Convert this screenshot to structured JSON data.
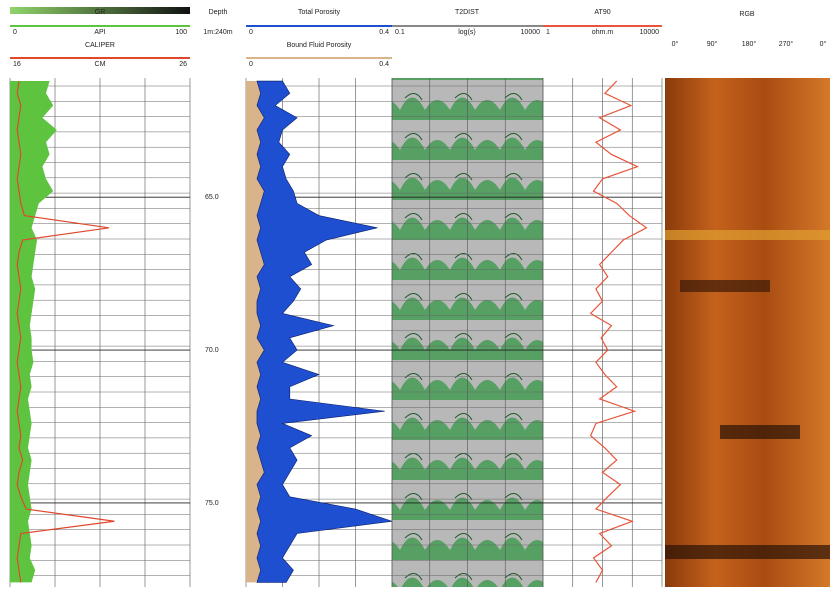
{
  "chart_data": {
    "type": "well-log",
    "depth_label": "Depth",
    "depth_scale": "1m:240m",
    "ylim": [
      61.1,
      77.75
    ],
    "yticks": [
      {
        "value": 65,
        "label": "65.0"
      },
      {
        "value": 70,
        "label": "70.0"
      },
      {
        "value": 75,
        "label": "75.0"
      }
    ],
    "depth": [
      61.2,
      61.6,
      62.0,
      62.4,
      62.8,
      63.2,
      63.6,
      64.0,
      64.4,
      64.8,
      65.2,
      65.6,
      66.0,
      66.4,
      66.8,
      67.2,
      67.6,
      68.0,
      68.4,
      68.8,
      69.2,
      69.6,
      70.0,
      70.4,
      70.8,
      71.2,
      71.6,
      72.0,
      72.4,
      72.8,
      73.2,
      73.6,
      74.0,
      74.4,
      74.8,
      75.2,
      75.6,
      76.0,
      76.4,
      76.8,
      77.2,
      77.6
    ],
    "tracks": [
      {
        "name": "GR",
        "unit": "API",
        "scale": [
          "0",
          "100"
        ],
        "xlim": [
          0,
          100
        ],
        "color": "#5ec440",
        "fill": true,
        "values": [
          22,
          20,
          24,
          18,
          26,
          20,
          22,
          18,
          20,
          24,
          16,
          14,
          12,
          15,
          14,
          13,
          12,
          14,
          13,
          12,
          11,
          12,
          12,
          13,
          11,
          12,
          10,
          11,
          12,
          11,
          10,
          12,
          11,
          10,
          11,
          12,
          10,
          11,
          12,
          11,
          14,
          12
        ]
      },
      {
        "name": "CALIPER",
        "unit": "CM",
        "scale": [
          "16",
          "26"
        ],
        "xlim": [
          16,
          26
        ],
        "color": "#e0472c",
        "values": [
          16.5,
          16.4,
          16.6,
          16.5,
          16.4,
          16.5,
          16.6,
          16.5,
          16.4,
          16.5,
          16.6,
          16.8,
          21.5,
          16.7,
          16.5,
          16.4,
          16.5,
          16.6,
          16.5,
          16.4,
          16.5,
          16.6,
          16.5,
          16.4,
          16.5,
          16.6,
          16.5,
          16.4,
          16.5,
          16.6,
          16.5,
          16.7,
          16.5,
          16.4,
          16.6,
          16.9,
          21.8,
          16.6,
          16.5,
          16.4,
          16.5,
          16.6
        ]
      },
      {
        "name": "Total Porosity",
        "scale": [
          "0",
          "0.4"
        ],
        "xlim": [
          0,
          0.4
        ],
        "color": "#1f4fd1",
        "values": [
          0.1,
          0.12,
          0.08,
          0.14,
          0.1,
          0.09,
          0.12,
          0.1,
          0.11,
          0.13,
          0.14,
          0.2,
          0.36,
          0.22,
          0.16,
          0.18,
          0.12,
          0.15,
          0.13,
          0.1,
          0.24,
          0.12,
          0.14,
          0.1,
          0.2,
          0.12,
          0.12,
          0.38,
          0.1,
          0.18,
          0.12,
          0.14,
          0.12,
          0.1,
          0.12,
          0.3,
          0.4,
          0.14,
          0.12,
          0.1,
          0.13,
          0.11
        ]
      },
      {
        "name": "Bound Fluid Porosity",
        "scale": [
          "0",
          "0.4"
        ],
        "xlim": [
          0,
          0.4
        ],
        "color": "#d9b48a",
        "values": [
          0.03,
          0.04,
          0.03,
          0.05,
          0.03,
          0.04,
          0.03,
          0.04,
          0.03,
          0.05,
          0.04,
          0.03,
          0.04,
          0.03,
          0.04,
          0.05,
          0.03,
          0.04,
          0.03,
          0.03,
          0.04,
          0.03,
          0.05,
          0.03,
          0.04,
          0.03,
          0.04,
          0.03,
          0.03,
          0.04,
          0.03,
          0.04,
          0.05,
          0.03,
          0.04,
          0.03,
          0.04,
          0.03,
          0.04,
          0.03,
          0.04,
          0.03
        ]
      },
      {
        "name": "AT90",
        "unit": "ohm.m",
        "scale": [
          "1",
          "10000"
        ],
        "xlim": [
          1,
          10000
        ],
        "log": true,
        "color": "#e8553a",
        "values": [
          300,
          120,
          900,
          80,
          400,
          60,
          200,
          1500,
          100,
          50,
          300,
          800,
          3000,
          500,
          200,
          80,
          150,
          60,
          100,
          40,
          200,
          90,
          150,
          60,
          120,
          300,
          80,
          1200,
          60,
          40,
          120,
          300,
          100,
          400,
          150,
          60,
          1000,
          80,
          200,
          50,
          100,
          60
        ]
      }
    ],
    "t2": {
      "name": "T2DIST",
      "unit": "log(s)",
      "scale": [
        "0.1",
        "10000"
      ]
    },
    "image": {
      "name": "RGB",
      "azimuths": [
        "0°",
        "90°",
        "180°",
        "270°",
        "0°"
      ]
    }
  }
}
